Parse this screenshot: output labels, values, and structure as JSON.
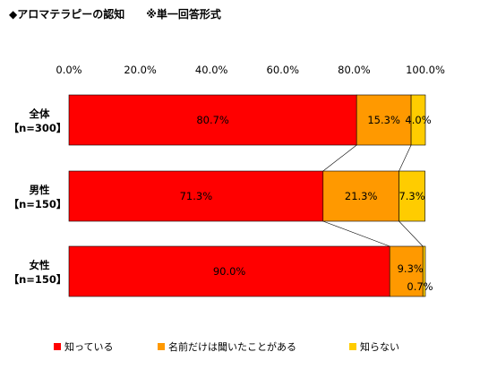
{
  "title": "◆アロマテラピーの認知　　※単一回答形式",
  "chart_data": {
    "type": "bar",
    "orientation": "horizontal",
    "stacked": true,
    "normalized_percent": true,
    "xlim": [
      0,
      100
    ],
    "x_ticks": [
      "0.0%",
      "20.0%",
      "40.0%",
      "60.0%",
      "80.0%",
      "100.0%"
    ],
    "categories": [
      {
        "line1": "全体",
        "line2": "【n=300】"
      },
      {
        "line1": "男性",
        "line2": "【n=150】"
      },
      {
        "line1": "女性",
        "line2": "【n=150】"
      }
    ],
    "series": [
      {
        "name": "知っている",
        "color": "#ff0000",
        "values": [
          80.7,
          71.3,
          90.0
        ],
        "labels": [
          "80.7%",
          "71.3%",
          "90.0%"
        ]
      },
      {
        "name": "名前だけは聞いたことがある",
        "color": "#ff9900",
        "values": [
          15.3,
          21.3,
          9.3
        ],
        "labels": [
          "15.3%",
          "21.3%",
          "9.3%"
        ]
      },
      {
        "name": "知らない",
        "color": "#ffcc00",
        "values": [
          4.0,
          7.3,
          0.7
        ],
        "labels": [
          "4.0%",
          "7.3%",
          "0.7%"
        ]
      }
    ],
    "series_lines": true,
    "legend_position": "bottom"
  }
}
